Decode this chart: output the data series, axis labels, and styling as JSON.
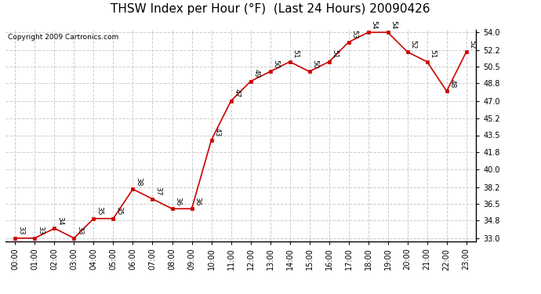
{
  "title": "THSW Index per Hour (°F)  (Last 24 Hours) 20090426",
  "copyright": "Copyright 2009 Cartronics.com",
  "hours": [
    "00:00",
    "01:00",
    "02:00",
    "03:00",
    "04:00",
    "05:00",
    "06:00",
    "07:00",
    "08:00",
    "09:00",
    "10:00",
    "11:00",
    "12:00",
    "13:00",
    "14:00",
    "15:00",
    "16:00",
    "17:00",
    "18:00",
    "19:00",
    "20:00",
    "21:00",
    "22:00",
    "23:00"
  ],
  "values": [
    33,
    33,
    34,
    33,
    35,
    35,
    38,
    37,
    36,
    36,
    43,
    47,
    49,
    50,
    51,
    50,
    51,
    53,
    54,
    54,
    52,
    51,
    48,
    52
  ],
  "ylim_min": 33.0,
  "ylim_max": 54.0,
  "yticks": [
    33.0,
    34.8,
    36.5,
    38.2,
    40.0,
    41.8,
    43.5,
    45.2,
    47.0,
    48.8,
    50.5,
    52.2,
    54.0
  ],
  "line_color": "#cc0000",
  "marker_color": "#cc0000",
  "bg_color": "#ffffff",
  "grid_color": "#cccccc",
  "title_fontsize": 11,
  "label_fontsize": 7,
  "annotation_fontsize": 6.5,
  "copyright_fontsize": 6.5
}
